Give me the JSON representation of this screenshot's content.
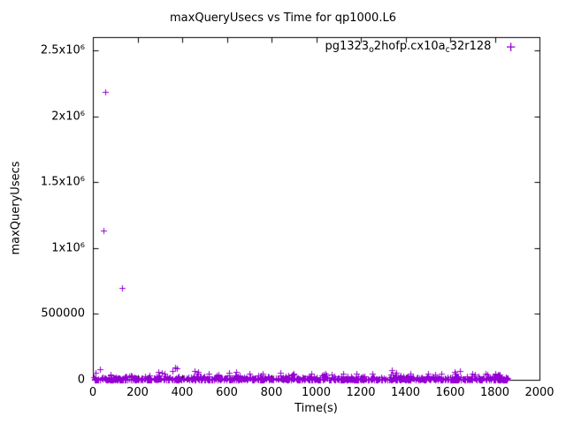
{
  "colors": {
    "marker": "#9400d3",
    "axis": "#000000",
    "background": "#ffffff"
  },
  "legend": {
    "marker_icon": "plus-marker-icon",
    "marker_glyph": "+",
    "parts": [
      {
        "text": "pg1323"
      },
      {
        "text": "o",
        "sub": true
      },
      {
        "text": "2hofp.cx10a"
      },
      {
        "text": "c",
        "sub": true
      },
      {
        "text": "32r128"
      }
    ]
  },
  "chart_data": {
    "type": "scatter",
    "title": "maxQueryUsecs vs Time for qp1000.L6",
    "xlabel": "Time(s)",
    "ylabel": "maxQueryUsecs",
    "xlim": [
      0,
      2000
    ],
    "ylim": [
      0,
      2600000
    ],
    "grid": false,
    "legend_position": "top-right-inside",
    "x_ticks": [
      {
        "v": 0,
        "label": "0"
      },
      {
        "v": 200,
        "label": "200"
      },
      {
        "v": 400,
        "label": "400"
      },
      {
        "v": 600,
        "label": "600"
      },
      {
        "v": 800,
        "label": "800"
      },
      {
        "v": 1000,
        "label": "1000"
      },
      {
        "v": 1200,
        "label": "1200"
      },
      {
        "v": 1400,
        "label": "1400"
      },
      {
        "v": 1600,
        "label": "1600"
      },
      {
        "v": 1800,
        "label": "1800"
      },
      {
        "v": 2000,
        "label": "2000"
      }
    ],
    "y_ticks": [
      {
        "v": 0,
        "label": "0"
      },
      {
        "v": 500000,
        "label": "500000"
      },
      {
        "v": 1000000,
        "label": "1x10⁶"
      },
      {
        "v": 1500000,
        "label": "1.5x10⁶"
      },
      {
        "v": 2000000,
        "label": "2x10⁶"
      },
      {
        "v": 2500000,
        "label": "2.5x10⁶"
      }
    ],
    "series": [
      {
        "name": "pg1323_o2hofp.cx10a_c32r128",
        "marker": "plus",
        "outlier_points": [
          [
            12,
            55000
          ],
          [
            30,
            80000
          ],
          [
            48,
            1130000
          ],
          [
            55,
            2185000
          ],
          [
            130,
            700000
          ],
          [
            295,
            60000
          ],
          [
            310,
            55000
          ],
          [
            355,
            65000
          ],
          [
            368,
            95000
          ],
          [
            378,
            90000
          ],
          [
            455,
            65000
          ],
          [
            470,
            58000
          ],
          [
            520,
            50000
          ],
          [
            610,
            52000
          ],
          [
            640,
            58000
          ],
          [
            700,
            48000
          ],
          [
            760,
            50000
          ],
          [
            840,
            52000
          ],
          [
            900,
            45000
          ],
          [
            980,
            48000
          ],
          [
            1040,
            45000
          ],
          [
            1120,
            50000
          ],
          [
            1180,
            45000
          ],
          [
            1250,
            48000
          ],
          [
            1340,
            72000
          ],
          [
            1360,
            55000
          ],
          [
            1420,
            50000
          ],
          [
            1500,
            45000
          ],
          [
            1560,
            48000
          ],
          [
            1620,
            60000
          ],
          [
            1645,
            65000
          ],
          [
            1700,
            45000
          ],
          [
            1760,
            50000
          ],
          [
            1820,
            42000
          ]
        ],
        "noise_band": {
          "description": "dense baseline of samples hugging y≈0",
          "count": 900,
          "x_min": 3,
          "x_max": 1862,
          "y_mean": 8000,
          "y_max": 45000,
          "seed": 42
        }
      }
    ]
  }
}
